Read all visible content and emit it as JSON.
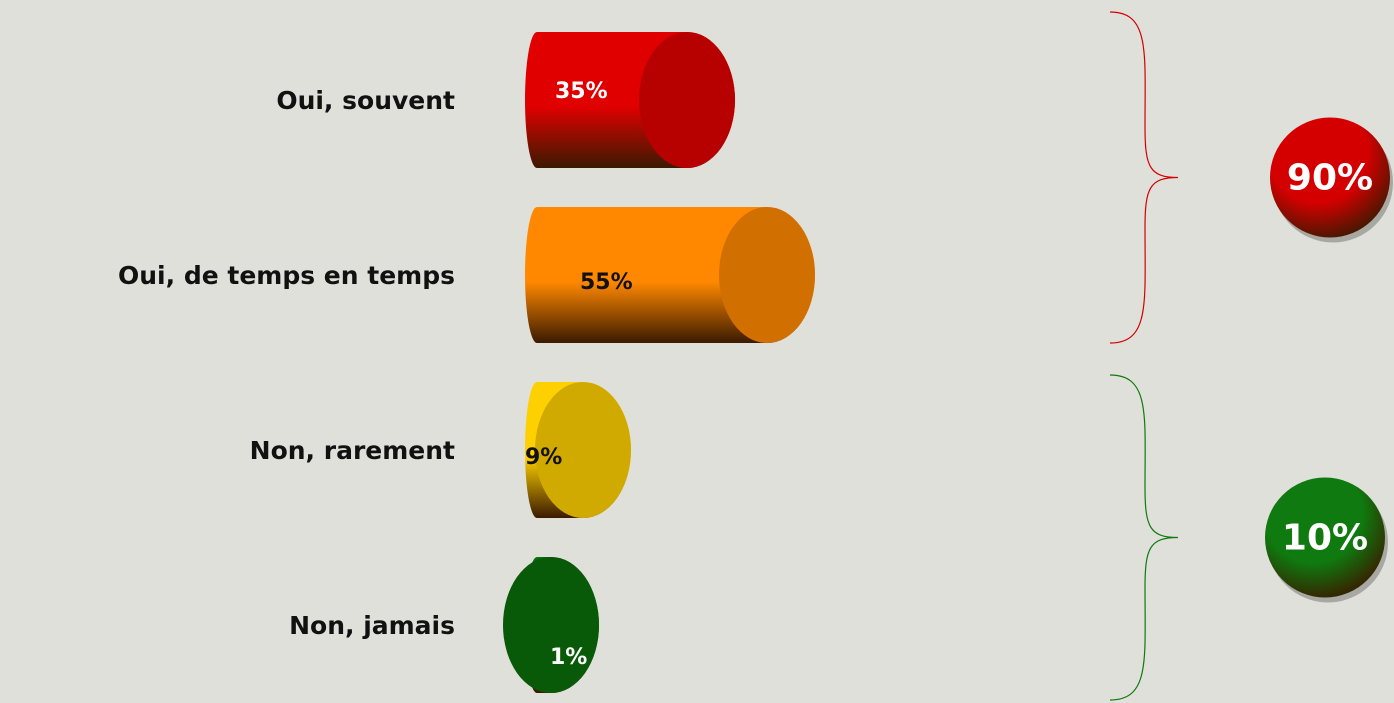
{
  "chart_data": {
    "type": "bar",
    "categories": [
      "Oui, souvent",
      "Oui, de temps en temps",
      "Non, rarement",
      "Non, jamais"
    ],
    "values": [
      35,
      55,
      9,
      1
    ],
    "value_labels": [
      "35%",
      "55%",
      "9%",
      "1%"
    ],
    "colors": [
      "#e00000",
      "#ff8800",
      "#ffd000",
      "#0a6e0a"
    ],
    "label_colors": [
      "#ffffff",
      "#111111",
      "#111111",
      "#ffffff"
    ],
    "groups": {
      "values": [
        90,
        10
      ],
      "value_labels": [
        "90%",
        "10%"
      ],
      "colors": [
        "#d40000",
        "#0f7a0f"
      ]
    }
  }
}
